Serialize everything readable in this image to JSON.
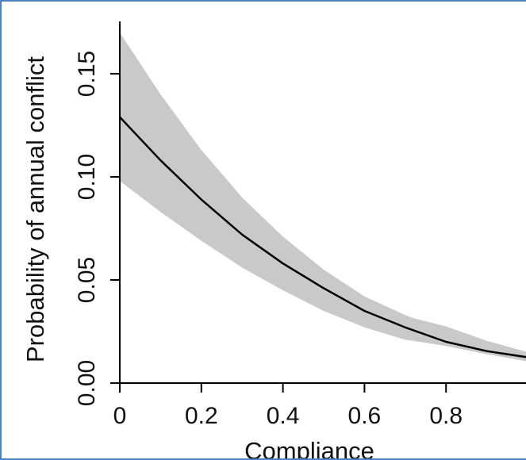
{
  "chart_data": {
    "type": "line",
    "title": "",
    "xlabel": "Compliance",
    "ylabel": "Probability of annual conflict",
    "xlim": [
      0,
      1
    ],
    "ylim": [
      0,
      0.17
    ],
    "x_ticks": [
      {
        "value": 0,
        "label": "0"
      },
      {
        "value": 0.2,
        "label": "0.2"
      },
      {
        "value": 0.4,
        "label": "0.4"
      },
      {
        "value": 0.6,
        "label": "0.6"
      },
      {
        "value": 0.8,
        "label": "0.8"
      }
    ],
    "y_ticks": [
      {
        "value": 0,
        "label": "0.00"
      },
      {
        "value": 0.05,
        "label": "0.05"
      },
      {
        "value": 0.1,
        "label": "0.10"
      },
      {
        "value": 0.15,
        "label": "0.15"
      }
    ],
    "grid": false,
    "colors": {
      "line": "#000000",
      "band": "#c8c9cb",
      "axis": "#000000",
      "frame": "#4f81bd"
    },
    "series": [
      {
        "x": [
          0,
          0.1,
          0.2,
          0.3,
          0.4,
          0.5,
          0.6,
          0.7,
          0.8,
          0.9,
          1.0
        ],
        "y": [
          0.129,
          0.108,
          0.089,
          0.072,
          0.058,
          0.046,
          0.035,
          0.027,
          0.02,
          0.0155,
          0.0125
        ]
      }
    ],
    "confidence_band": {
      "x": [
        0,
        0.1,
        0.2,
        0.3,
        0.4,
        0.5,
        0.6,
        0.7,
        0.72,
        0.8,
        0.9,
        1.0
      ],
      "lower": [
        0.098,
        0.083,
        0.069,
        0.056,
        0.045,
        0.035,
        0.027,
        0.021,
        0.0205,
        0.018,
        0.014,
        0.0105
      ],
      "upper": [
        0.17,
        0.14,
        0.113,
        0.09,
        0.071,
        0.055,
        0.042,
        0.033,
        0.0315,
        0.0275,
        0.0205,
        0.015
      ]
    }
  }
}
